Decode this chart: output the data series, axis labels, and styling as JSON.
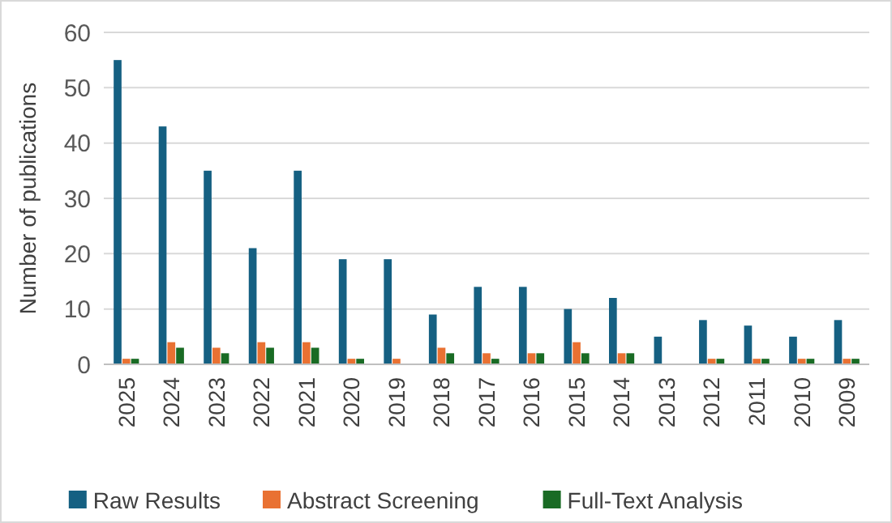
{
  "chart_data": {
    "type": "bar",
    "ylabel": "Number of publications",
    "categories": [
      "2025",
      "2024",
      "2023",
      "2022",
      "2021",
      "2020",
      "2019",
      "2018",
      "2017",
      "2016",
      "2015",
      "2014",
      "2013",
      "2012",
      "2011",
      "2010",
      "2009"
    ],
    "series": [
      {
        "name": "Raw Results",
        "color": "#156082",
        "values": [
          55,
          43,
          35,
          21,
          35,
          19,
          19,
          9,
          14,
          14,
          10,
          12,
          5,
          8,
          7,
          5,
          8
        ]
      },
      {
        "name": "Abstract Screening",
        "color": "#e97132",
        "values": [
          1,
          4,
          3,
          4,
          4,
          1,
          1,
          3,
          2,
          2,
          4,
          2,
          0,
          1,
          1,
          1,
          1
        ]
      },
      {
        "name": "Full-Text Analysis",
        "color": "#196b24",
        "values": [
          1,
          3,
          2,
          3,
          3,
          1,
          0,
          2,
          1,
          2,
          2,
          2,
          0,
          1,
          1,
          1,
          1
        ]
      }
    ],
    "ylim": [
      0,
      60
    ],
    "yticks": [
      0,
      10,
      20,
      30,
      40,
      50,
      60
    ],
    "grid": "y",
    "legend": "bottom"
  }
}
